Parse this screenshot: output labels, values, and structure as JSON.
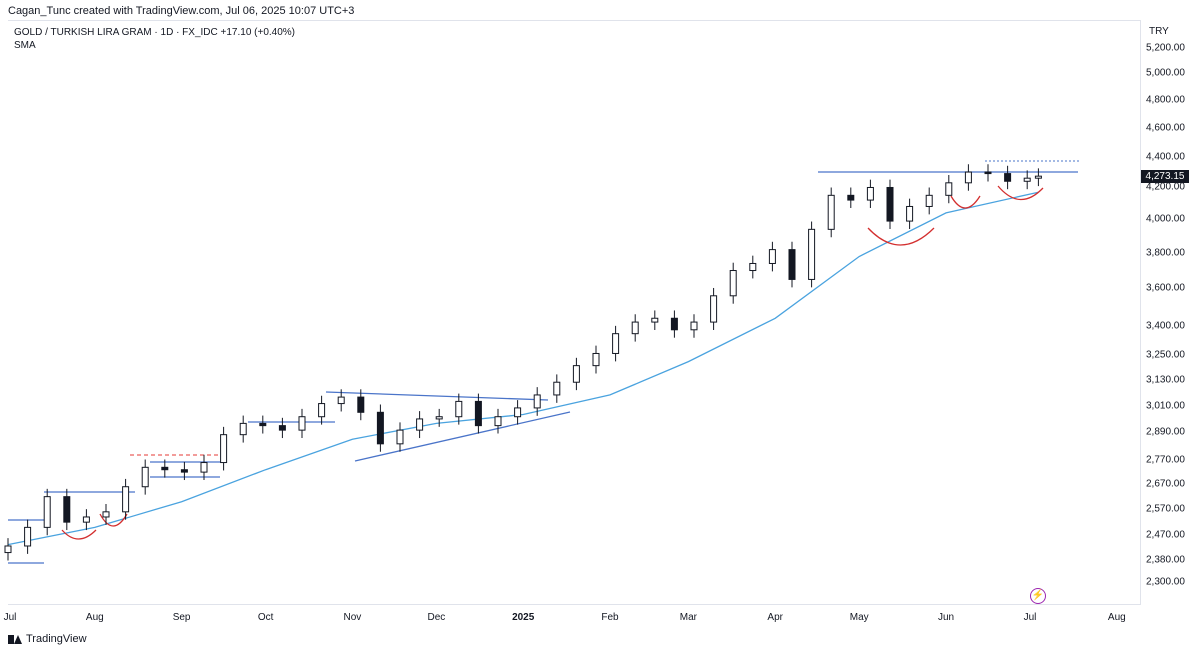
{
  "header": {
    "author_line": "Cagan_Tunc created with TradingView.com, Jul 06, 2025 10:07 UTC+3"
  },
  "legend": {
    "symbol_line": "GOLD / TURKISH LIRA GRAM · 1D · FX_IDC  +17.10 (+0.40%)",
    "indicator": "SMA"
  },
  "branding": {
    "label": "TradingView"
  },
  "colors": {
    "up_candle": "#ffffff",
    "down_candle": "#131722",
    "sma": "#4aa3df",
    "trendline": "#4a74c9",
    "arc": "#d32f2f",
    "dashed_level": "#e53935",
    "price_tag_bg": "#131722"
  },
  "chart_data": {
    "type": "candlestick",
    "title": "",
    "currency": "TRY",
    "scale": "log",
    "ylim": [
      2240,
      5400
    ],
    "y_ticks": [
      "5,200.00",
      "5,000.00",
      "4,800.00",
      "4,600.00",
      "4,400.00",
      "4,200.00",
      "4,000.00",
      "3,800.00",
      "3,600.00",
      "3,400.00",
      "3,250.00",
      "3,130.00",
      "3,010.00",
      "2,890.00",
      "2,770.00",
      "2,670.00",
      "2,570.00",
      "2,470.00",
      "2,380.00",
      "2,300.00"
    ],
    "x_ticks": [
      "Jul",
      "Aug",
      "Sep",
      "Oct",
      "Nov",
      "Dec",
      "2025",
      "Feb",
      "Mar",
      "Apr",
      "May",
      "Jun",
      "Jul",
      "Aug"
    ],
    "last_price": "4,273.15",
    "last_change": "+17.10 (+0.40%)",
    "close_series": [
      {
        "date": "2024-07-01",
        "close": 2430
      },
      {
        "date": "2024-07-08",
        "close": 2500
      },
      {
        "date": "2024-07-15",
        "close": 2620
      },
      {
        "date": "2024-07-22",
        "close": 2520
      },
      {
        "date": "2024-07-29",
        "close": 2540
      },
      {
        "date": "2024-08-05",
        "close": 2560
      },
      {
        "date": "2024-08-12",
        "close": 2660
      },
      {
        "date": "2024-08-19",
        "close": 2740
      },
      {
        "date": "2024-08-26",
        "close": 2730
      },
      {
        "date": "2024-09-02",
        "close": 2720
      },
      {
        "date": "2024-09-09",
        "close": 2760
      },
      {
        "date": "2024-09-16",
        "close": 2880
      },
      {
        "date": "2024-09-23",
        "close": 2930
      },
      {
        "date": "2024-09-30",
        "close": 2920
      },
      {
        "date": "2024-10-07",
        "close": 2900
      },
      {
        "date": "2024-10-14",
        "close": 2960
      },
      {
        "date": "2024-10-21",
        "close": 3020
      },
      {
        "date": "2024-10-28",
        "close": 3050
      },
      {
        "date": "2024-11-04",
        "close": 2980
      },
      {
        "date": "2024-11-11",
        "close": 2840
      },
      {
        "date": "2024-11-18",
        "close": 2900
      },
      {
        "date": "2024-11-25",
        "close": 2950
      },
      {
        "date": "2024-12-02",
        "close": 2960
      },
      {
        "date": "2024-12-09",
        "close": 3030
      },
      {
        "date": "2024-12-16",
        "close": 2920
      },
      {
        "date": "2024-12-23",
        "close": 2960
      },
      {
        "date": "2024-12-30",
        "close": 3000
      },
      {
        "date": "2025-01-06",
        "close": 3060
      },
      {
        "date": "2025-01-13",
        "close": 3120
      },
      {
        "date": "2025-01-20",
        "close": 3200
      },
      {
        "date": "2025-01-27",
        "close": 3260
      },
      {
        "date": "2025-02-03",
        "close": 3360
      },
      {
        "date": "2025-02-10",
        "close": 3420
      },
      {
        "date": "2025-02-17",
        "close": 3440
      },
      {
        "date": "2025-02-24",
        "close": 3380
      },
      {
        "date": "2025-03-03",
        "close": 3420
      },
      {
        "date": "2025-03-10",
        "close": 3560
      },
      {
        "date": "2025-03-17",
        "close": 3700
      },
      {
        "date": "2025-03-24",
        "close": 3740
      },
      {
        "date": "2025-03-31",
        "close": 3820
      },
      {
        "date": "2025-04-07",
        "close": 3650
      },
      {
        "date": "2025-04-14",
        "close": 3940
      },
      {
        "date": "2025-04-21",
        "close": 4150
      },
      {
        "date": "2025-04-28",
        "close": 4120
      },
      {
        "date": "2025-05-05",
        "close": 4200
      },
      {
        "date": "2025-05-12",
        "close": 3990
      },
      {
        "date": "2025-05-19",
        "close": 4080
      },
      {
        "date": "2025-05-26",
        "close": 4150
      },
      {
        "date": "2025-06-02",
        "close": 4230
      },
      {
        "date": "2025-06-09",
        "close": 4300
      },
      {
        "date": "2025-06-16",
        "close": 4290
      },
      {
        "date": "2025-06-23",
        "close": 4240
      },
      {
        "date": "2025-06-30",
        "close": 4260
      },
      {
        "date": "2025-07-04",
        "close": 4273.15
      }
    ],
    "sma_series": [
      {
        "date": "2024-07-01",
        "value": 2435
      },
      {
        "date": "2024-08-01",
        "value": 2500
      },
      {
        "date": "2024-09-01",
        "value": 2600
      },
      {
        "date": "2024-10-01",
        "value": 2730
      },
      {
        "date": "2024-11-01",
        "value": 2860
      },
      {
        "date": "2024-12-01",
        "value": 2930
      },
      {
        "date": "2025-01-01",
        "value": 2970
      },
      {
        "date": "2025-02-01",
        "value": 3060
      },
      {
        "date": "2025-03-01",
        "value": 3220
      },
      {
        "date": "2025-04-01",
        "value": 3440
      },
      {
        "date": "2025-05-01",
        "value": 3780
      },
      {
        "date": "2025-06-01",
        "value": 4040
      },
      {
        "date": "2025-07-04",
        "value": 4170
      }
    ]
  }
}
